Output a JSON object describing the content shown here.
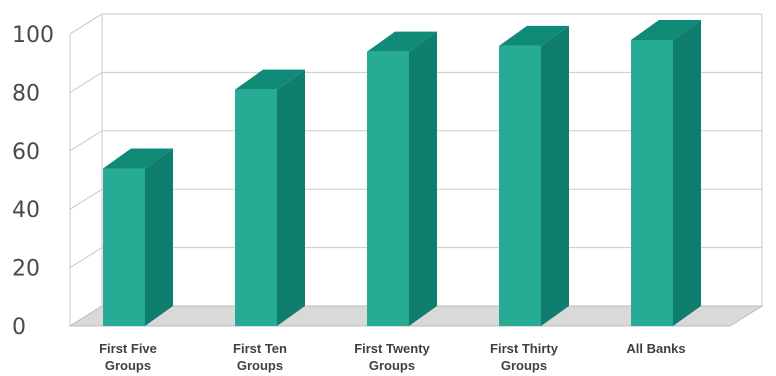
{
  "chart_data": {
    "type": "bar",
    "title": "",
    "xlabel": "",
    "ylabel": "",
    "ylim": [
      0,
      100
    ],
    "yticks": [
      "0",
      "20",
      "40",
      "60",
      "80",
      "100"
    ],
    "categories": [
      [
        "First Five",
        "Groups"
      ],
      [
        "First Ten",
        "Groups"
      ],
      [
        "First Twenty",
        "Groups"
      ],
      [
        "First Thirty",
        "Groups"
      ],
      [
        "All Banks"
      ]
    ],
    "values": [
      56,
      83,
      96,
      98,
      100
    ],
    "grid": true,
    "style": "3d",
    "colors": {
      "bar_front": "#27ab95",
      "bar_side": "#0f7e6f",
      "bar_top": "#0f8a77",
      "floor": "#d9d9d9",
      "grid": "#c9c9c9",
      "wall": "#ffffff"
    }
  }
}
